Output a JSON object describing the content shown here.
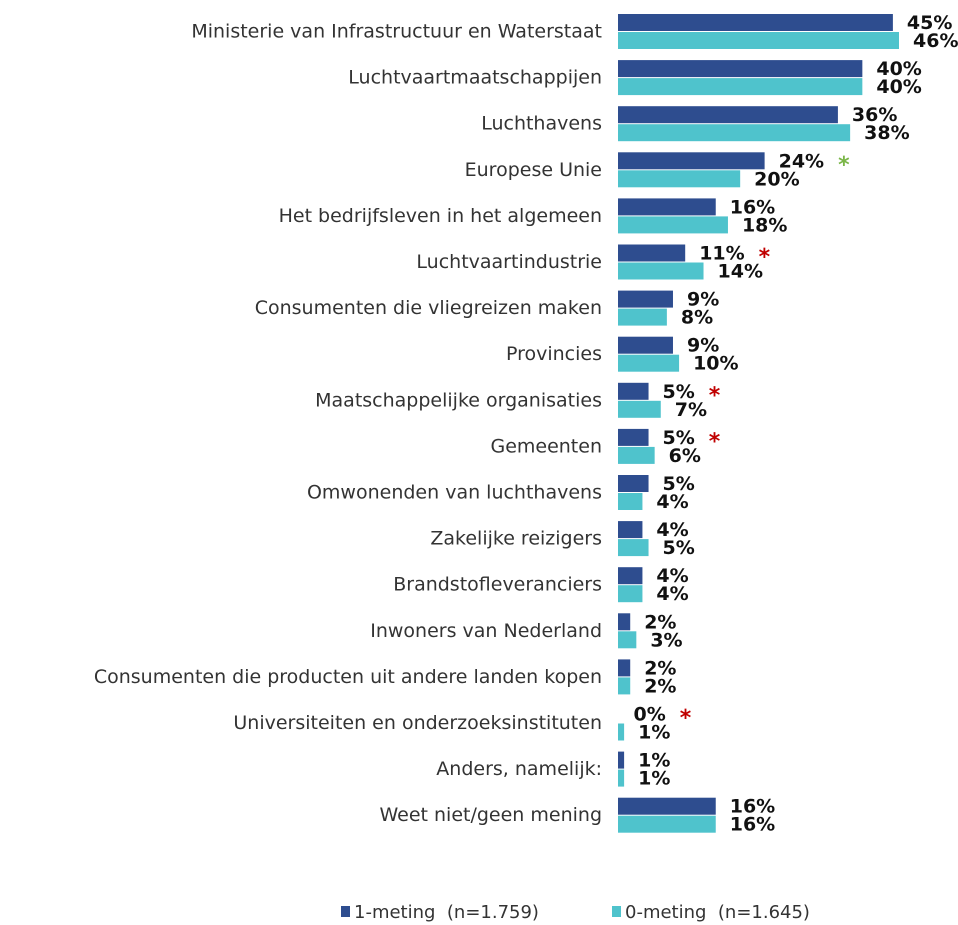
{
  "chart_data": {
    "type": "bar",
    "orientation": "horizontal",
    "categories": [
      "Ministerie van Infrastructuur en Waterstaat",
      "Luchtvaartmaatschappijen",
      "Luchthavens",
      "Europese Unie",
      "Het bedrijfsleven in het algemeen",
      "Luchtvaartindustrie",
      "Consumenten die vliegreizen maken",
      "Provincies",
      "Maatschappelijke organisaties",
      "Gemeenten",
      "Omwonenden van luchthavens",
      "Zakelijke reizigers",
      "Brandstofleveranciers",
      "Inwoners van Nederland",
      "Consumenten die producten uit andere landen kopen",
      "Universiteiten en onderzoeksinstituten",
      "Anders, namelijk:",
      "Weet niet/geen mening"
    ],
    "series": [
      {
        "name": "1-meting  (n=1.759)",
        "color": "#2e4d8f",
        "values": [
          45,
          40,
          36,
          24,
          16,
          11,
          9,
          9,
          5,
          5,
          5,
          4,
          4,
          2,
          2,
          0,
          1,
          16
        ],
        "value_labels": [
          "45%",
          "40%",
          "36%",
          "24%",
          "16%",
          "11%",
          "9%",
          "9%",
          "5%",
          "5%",
          "5%",
          "4%",
          "4%",
          "2%",
          "2%",
          "0%",
          "1%",
          "16%"
        ]
      },
      {
        "name": "0-meting  (n=1.645)",
        "color": "#4fc3cc",
        "values": [
          46,
          40,
          38,
          20,
          18,
          14,
          8,
          10,
          7,
          6,
          4,
          5,
          4,
          3,
          2,
          1,
          1,
          16
        ],
        "value_labels": [
          "46%",
          "40%",
          "38%",
          "20%",
          "18%",
          "14%",
          "8%",
          "10%",
          "7%",
          "6%",
          "4%",
          "5%",
          "4%",
          "3%",
          "2%",
          "1%",
          "1%",
          "16%"
        ]
      }
    ],
    "annotations": [
      null,
      null,
      null,
      {
        "text": "*",
        "color": "#7ab648"
      },
      null,
      {
        "text": "*",
        "color": "#c00000"
      },
      null,
      null,
      {
        "text": "*",
        "color": "#c00000"
      },
      {
        "text": "*",
        "color": "#c00000"
      },
      null,
      null,
      null,
      null,
      null,
      {
        "text": "*",
        "color": "#c00000"
      },
      null,
      null
    ],
    "legend": "bottom"
  }
}
